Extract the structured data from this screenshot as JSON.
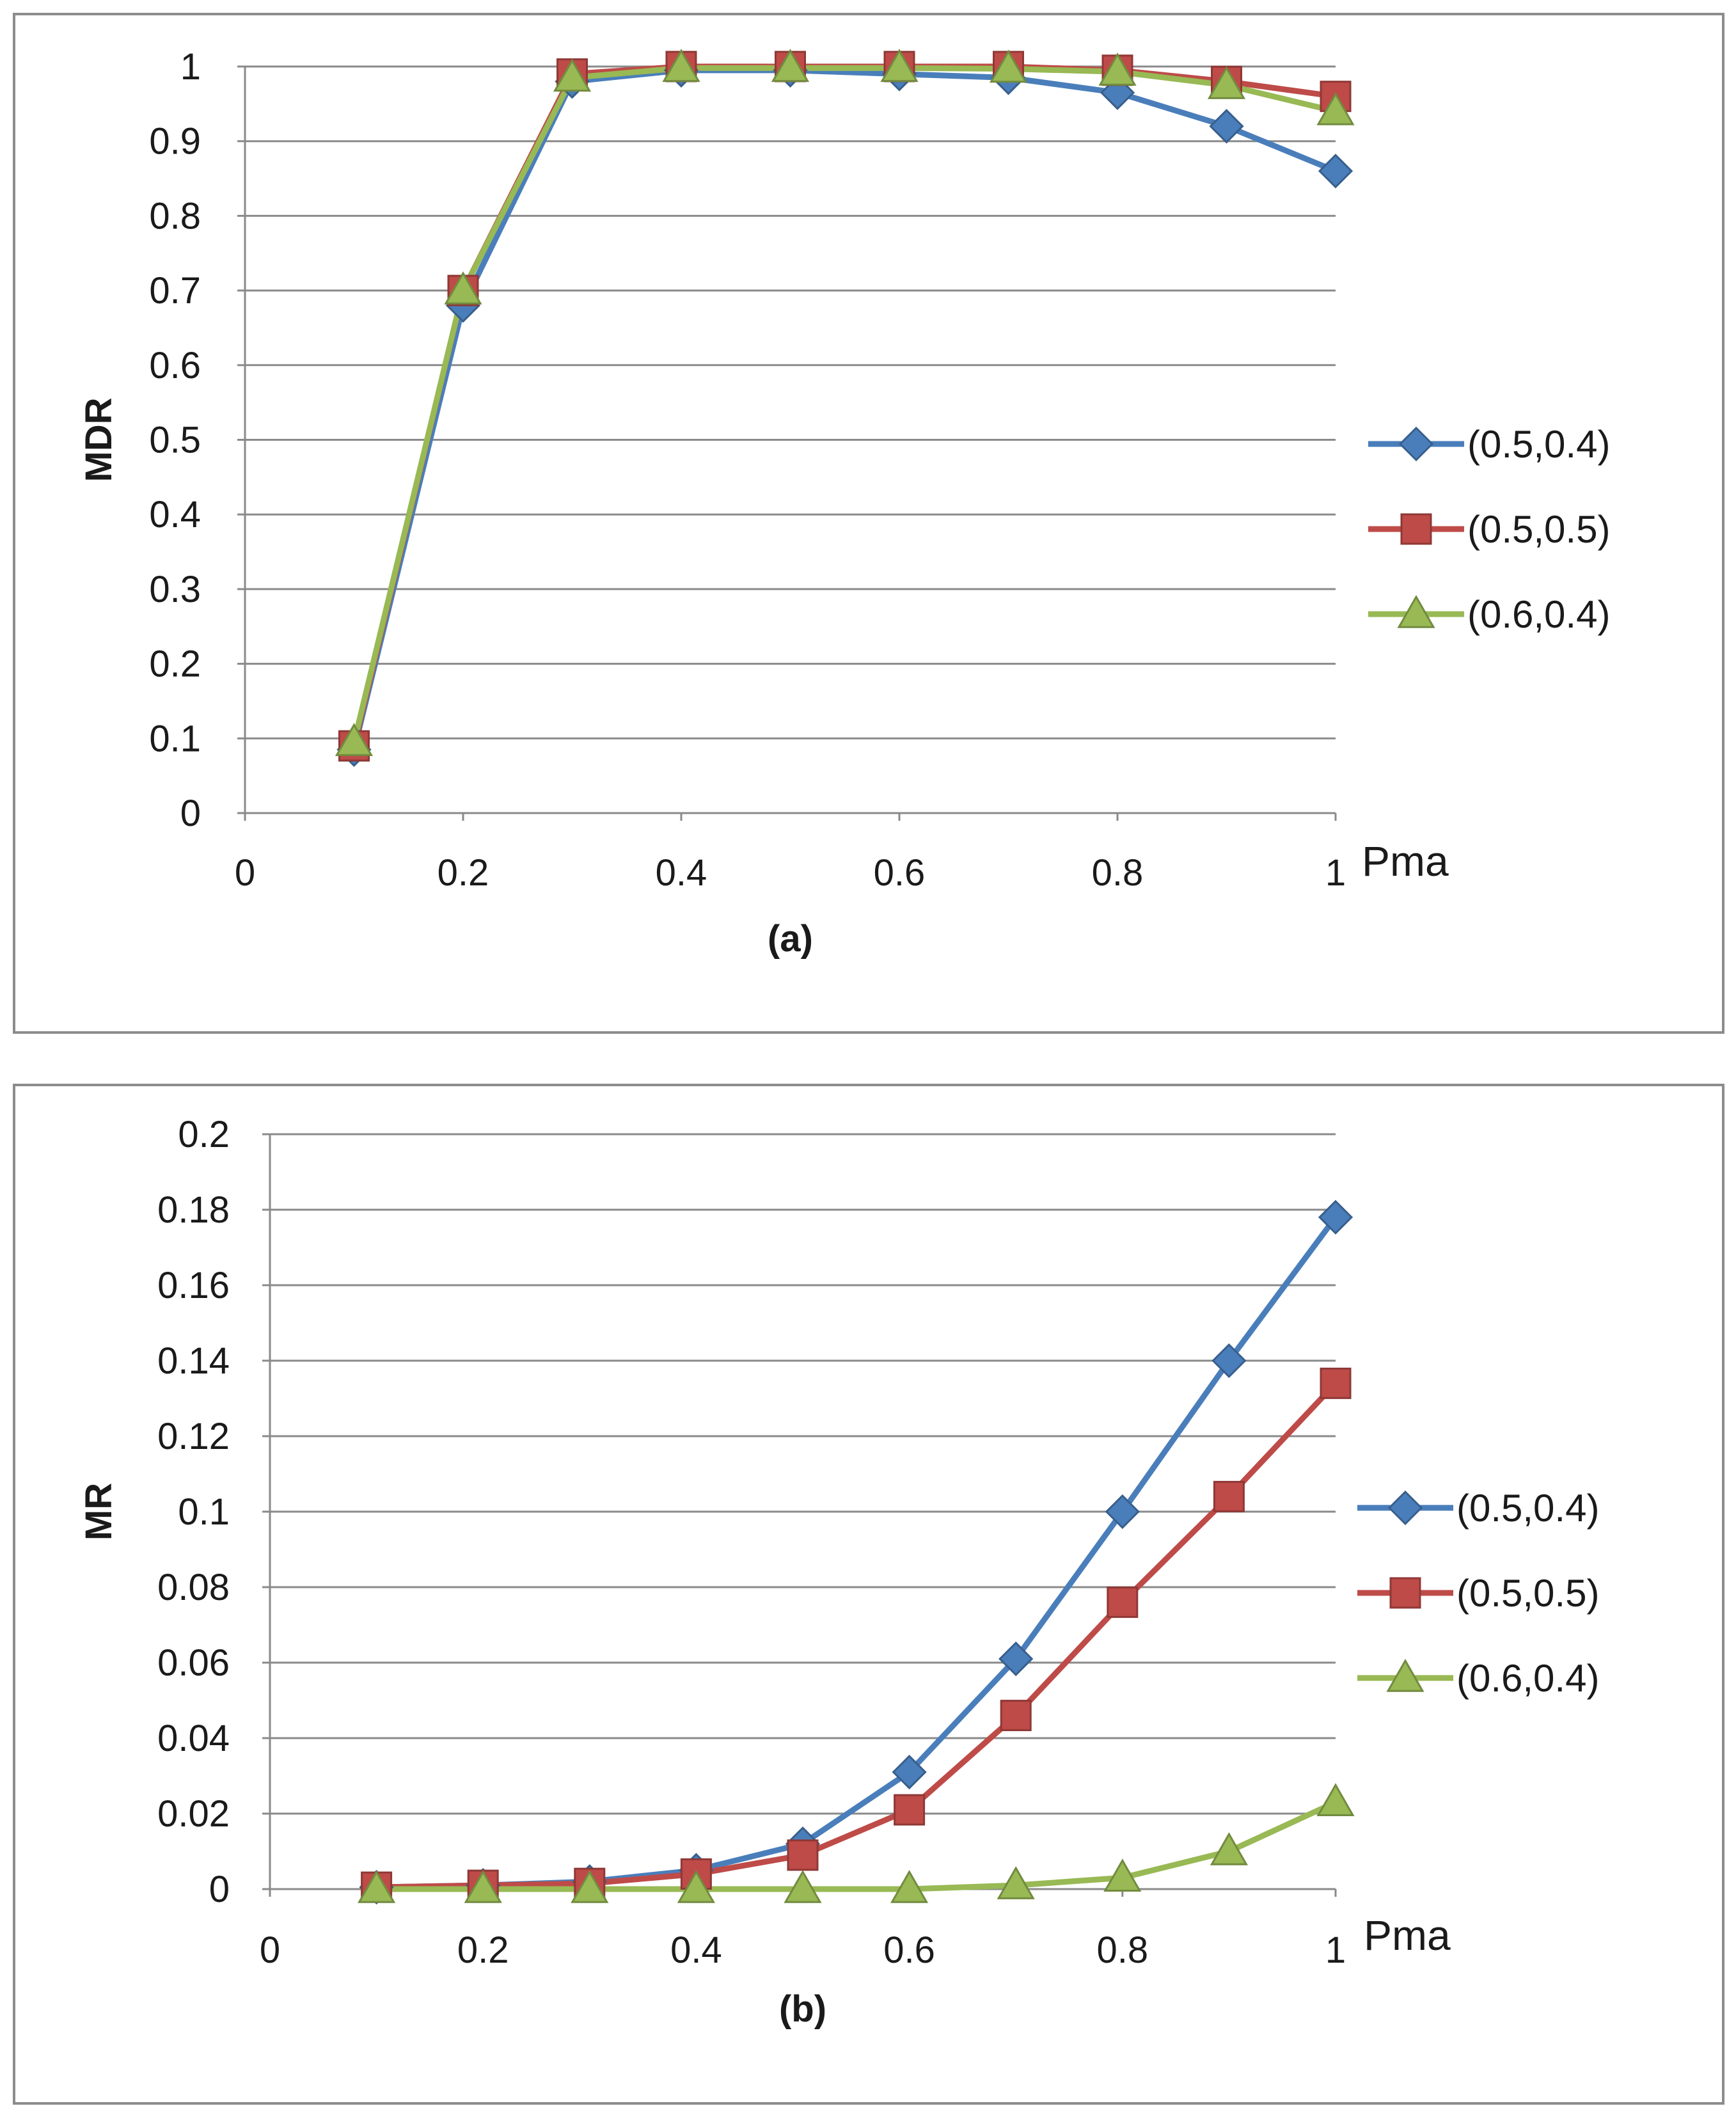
{
  "chart_data": [
    {
      "id": "a",
      "type": "line",
      "caption": "(a)",
      "xlabel": "Pma",
      "ylabel": "MDR",
      "xlim": [
        0,
        1
      ],
      "ylim": [
        0,
        1
      ],
      "xticks": [
        0,
        0.2,
        0.4,
        0.6,
        0.8,
        1
      ],
      "xtick_labels": [
        "0",
        "0.2",
        "0.4",
        "0.6",
        "0.8",
        "1"
      ],
      "yticks": [
        0,
        0.1,
        0.2,
        0.3,
        0.4,
        0.5,
        0.6,
        0.7,
        0.8,
        0.9,
        1
      ],
      "ytick_labels": [
        "0",
        "0.1",
        "0.2",
        "0.3",
        "0.4",
        "0.5",
        "0.6",
        "0.7",
        "0.8",
        "0.9",
        "1"
      ],
      "grid": "horizontal",
      "legend_position": "right",
      "x": [
        0.1,
        0.2,
        0.3,
        0.4,
        0.5,
        0.6,
        0.7,
        0.8,
        0.9,
        1.0
      ],
      "series": [
        {
          "name": "(0.5,0.4)",
          "color": "#4a7ebb",
          "marker": "diamond",
          "values": [
            0.085,
            0.68,
            0.98,
            0.995,
            0.995,
            0.99,
            0.985,
            0.965,
            0.92,
            0.86
          ]
        },
        {
          "name": "(0.5,0.5)",
          "color": "#be4b48",
          "marker": "square",
          "values": [
            0.09,
            0.7,
            0.99,
            1.0,
            1.0,
            1.0,
            1.0,
            0.995,
            0.98,
            0.96
          ]
        },
        {
          "name": "(0.6,0.4)",
          "color": "#98b954",
          "marker": "triangle",
          "values": [
            0.095,
            0.7,
            0.985,
            0.998,
            0.998,
            0.998,
            0.997,
            0.993,
            0.975,
            0.94
          ]
        }
      ]
    },
    {
      "id": "b",
      "type": "line",
      "caption": "(b)",
      "xlabel": "Pma",
      "ylabel": "MR",
      "xlim": [
        0,
        1
      ],
      "ylim": [
        0,
        0.2
      ],
      "xticks": [
        0,
        0.2,
        0.4,
        0.6,
        0.8,
        1
      ],
      "xtick_labels": [
        "0",
        "0.2",
        "0.4",
        "0.6",
        "0.8",
        "1"
      ],
      "yticks": [
        0,
        0.02,
        0.04,
        0.06,
        0.08,
        0.1,
        0.12,
        0.14,
        0.16,
        0.18,
        0.2
      ],
      "ytick_labels": [
        "0",
        "0.02",
        "0.04",
        "0.06",
        "0.08",
        "0.1",
        "0.12",
        "0.14",
        "0.16",
        "0.18",
        "0.2"
      ],
      "grid": "horizontal",
      "legend_position": "right",
      "x": [
        0.1,
        0.2,
        0.3,
        0.4,
        0.5,
        0.6,
        0.7,
        0.8,
        0.9,
        1.0
      ],
      "series": [
        {
          "name": "(0.5,0.4)",
          "color": "#4a7ebb",
          "marker": "diamond",
          "values": [
            0.0005,
            0.001,
            0.002,
            0.005,
            0.012,
            0.031,
            0.061,
            0.1,
            0.14,
            0.178
          ]
        },
        {
          "name": "(0.5,0.5)",
          "color": "#be4b48",
          "marker": "square",
          "values": [
            0.0005,
            0.001,
            0.0015,
            0.004,
            0.009,
            0.021,
            0.046,
            0.076,
            0.104,
            0.134
          ]
        },
        {
          "name": "(0.6,0.4)",
          "color": "#98b954",
          "marker": "triangle",
          "values": [
            0.0,
            0.0,
            0.0,
            0.0,
            0.0,
            0.0,
            0.001,
            0.003,
            0.01,
            0.023
          ]
        }
      ]
    }
  ]
}
